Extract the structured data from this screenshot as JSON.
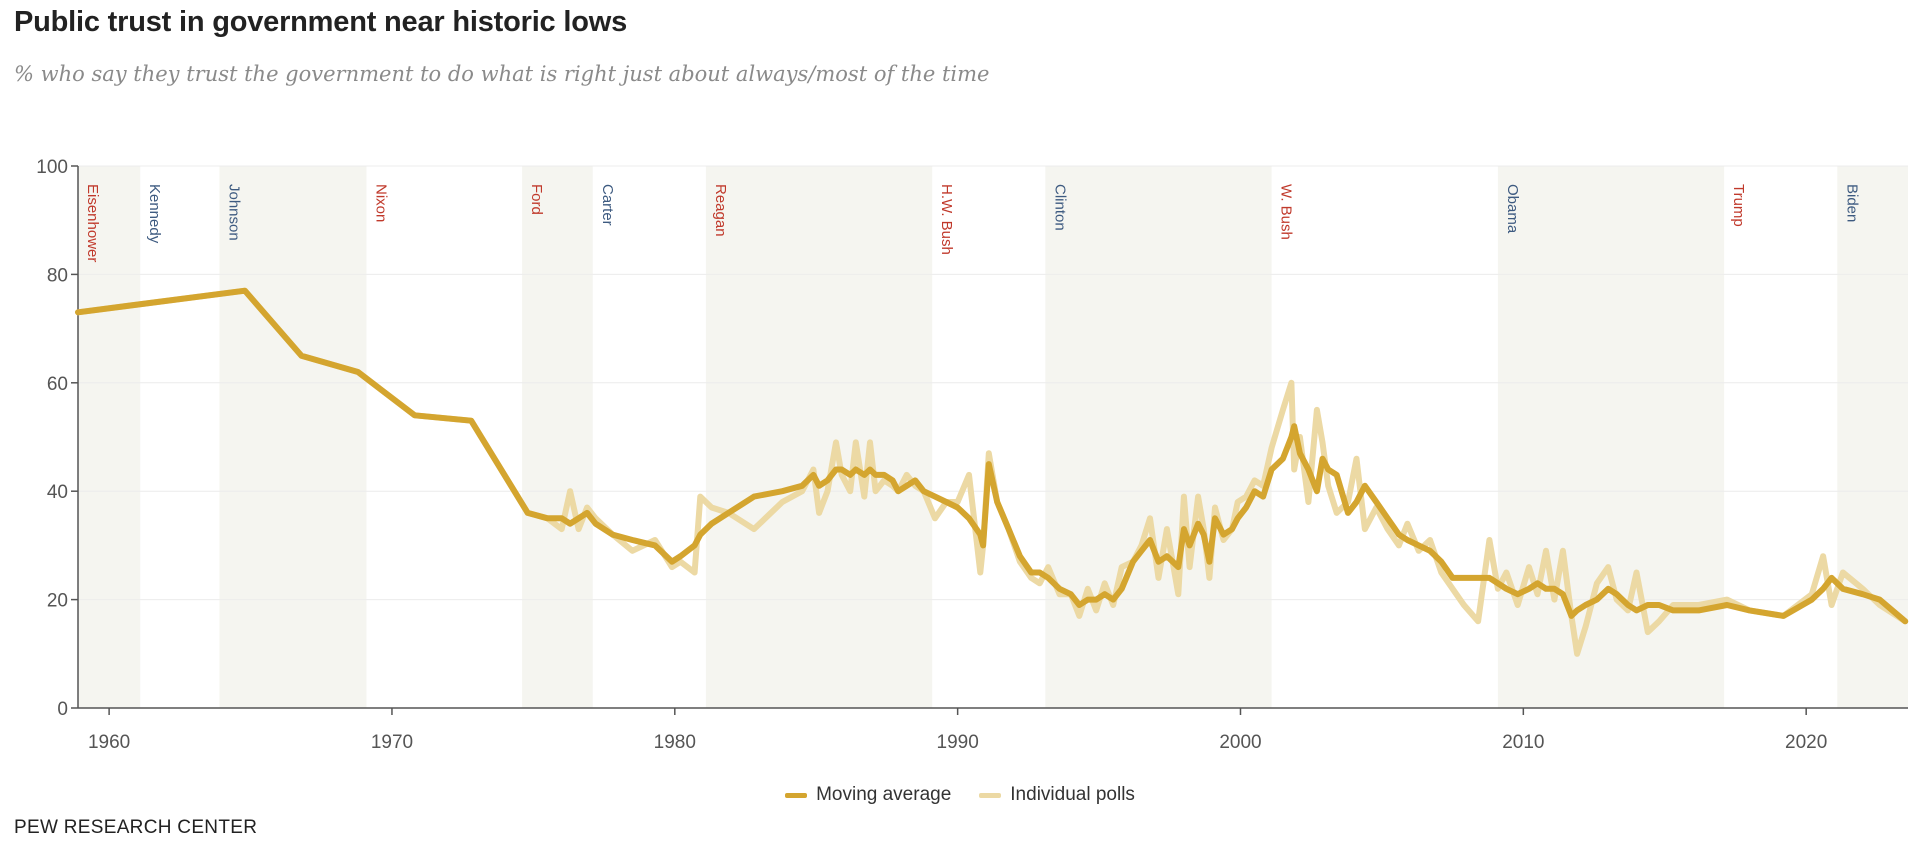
{
  "header": {
    "title": "Public trust in government near historic lows",
    "subtitle": "% who say they trust the government to do what is right just about always/most of the time"
  },
  "footer": {
    "source": "PEW RESEARCH CENTER"
  },
  "colors": {
    "moving_average": "#d4a52f",
    "individual_polls": "#ecd9a4",
    "shade": "#f5f5f0",
    "republican": "#c0392b",
    "democrat": "#3d5a80",
    "axis": "#555555"
  },
  "chart_data": {
    "type": "line",
    "title": "Public trust in government near historic lows",
    "subtitle": "% who say they trust the government to do what is right just about always/most of the time",
    "xlabel": "",
    "ylabel": "",
    "xlim": [
      1958.9,
      2023.6
    ],
    "ylim": [
      0,
      100
    ],
    "x_ticks": [
      1960,
      1970,
      1980,
      1990,
      2000,
      2010,
      2020
    ],
    "y_ticks": [
      0,
      20,
      40,
      60,
      80,
      100
    ],
    "grid": true,
    "legend": "bottom",
    "presidents": [
      {
        "name": "Eisenhower",
        "start": 1958.9,
        "end": 1961.1,
        "party": "R",
        "shaded": true
      },
      {
        "name": "Kennedy",
        "start": 1961.1,
        "end": 1963.9,
        "party": "D",
        "shaded": false
      },
      {
        "name": "Johnson",
        "start": 1963.9,
        "end": 1969.1,
        "party": "D",
        "shaded": true
      },
      {
        "name": "Nixon",
        "start": 1969.1,
        "end": 1974.6,
        "party": "R",
        "shaded": false
      },
      {
        "name": "Ford",
        "start": 1974.6,
        "end": 1977.1,
        "party": "R",
        "shaded": true
      },
      {
        "name": "Carter",
        "start": 1977.1,
        "end": 1981.1,
        "party": "D",
        "shaded": false
      },
      {
        "name": "Reagan",
        "start": 1981.1,
        "end": 1989.1,
        "party": "R",
        "shaded": true
      },
      {
        "name": "H.W. Bush",
        "start": 1989.1,
        "end": 1993.1,
        "party": "R",
        "shaded": false
      },
      {
        "name": "Clinton",
        "start": 1993.1,
        "end": 2001.1,
        "party": "D",
        "shaded": true
      },
      {
        "name": "W. Bush",
        "start": 2001.1,
        "end": 2009.1,
        "party": "R",
        "shaded": false
      },
      {
        "name": "Obama",
        "start": 2009.1,
        "end": 2017.1,
        "party": "D",
        "shaded": true
      },
      {
        "name": "Trump",
        "start": 2017.1,
        "end": 2021.1,
        "party": "R",
        "shaded": false
      },
      {
        "name": "Biden",
        "start": 2021.1,
        "end": 2023.6,
        "party": "D",
        "shaded": true
      }
    ],
    "series": [
      {
        "name": "Individual polls",
        "x": [
          1958.9,
          1964.8,
          1966.8,
          1968.8,
          1970.8,
          1972.8,
          1974.8,
          1975.5,
          1976.0,
          1976.3,
          1976.6,
          1976.9,
          1977.2,
          1977.8,
          1978.5,
          1979.3,
          1979.9,
          1980.2,
          1980.7,
          1980.9,
          1981.3,
          1981.9,
          1982.8,
          1983.8,
          1984.5,
          1984.9,
          1985.1,
          1985.4,
          1985.7,
          1985.9,
          1986.2,
          1986.4,
          1986.7,
          1986.9,
          1987.1,
          1987.4,
          1987.7,
          1987.9,
          1988.2,
          1988.5,
          1988.8,
          1989.2,
          1989.6,
          1990.0,
          1990.4,
          1990.8,
          1990.9,
          1991.1,
          1991.4,
          1991.8,
          1992.2,
          1992.6,
          1992.9,
          1993.2,
          1993.6,
          1994.0,
          1994.3,
          1994.6,
          1994.9,
          1995.2,
          1995.5,
          1995.8,
          1996.2,
          1996.5,
          1996.8,
          1997.1,
          1997.4,
          1997.8,
          1998.0,
          1998.2,
          1998.5,
          1998.7,
          1998.9,
          1999.1,
          1999.4,
          1999.7,
          1999.9,
          2000.2,
          2000.5,
          2000.8,
          2001.1,
          2001.5,
          2001.8,
          2001.9,
          2002.1,
          2002.4,
          2002.7,
          2002.9,
          2003.1,
          2003.4,
          2003.8,
          2004.1,
          2004.4,
          2004.8,
          2005.2,
          2005.6,
          2005.9,
          2006.3,
          2006.7,
          2007.1,
          2007.5,
          2007.9,
          2008.4,
          2008.8,
          2009.1,
          2009.4,
          2009.8,
          2010.2,
          2010.5,
          2010.8,
          2011.1,
          2011.4,
          2011.7,
          2011.9,
          2012.2,
          2012.6,
          2013.0,
          2013.3,
          2013.7,
          2014.0,
          2014.4,
          2014.8,
          2015.3,
          2016.2,
          2017.2,
          2018.0,
          2019.2,
          2020.2,
          2020.6,
          2020.9,
          2021.3,
          2022.0,
          2022.6,
          2023.5
        ],
        "values": [
          73,
          77,
          65,
          62,
          54,
          53,
          36,
          35,
          33,
          40,
          33,
          37,
          35,
          32,
          29,
          31,
          26,
          27,
          25,
          39,
          37,
          36,
          33,
          38,
          40,
          44,
          36,
          40,
          49,
          43,
          40,
          49,
          39,
          49,
          40,
          42,
          41,
          40,
          43,
          41,
          40,
          35,
          38,
          38,
          43,
          25,
          30,
          47,
          38,
          33,
          27,
          24,
          23,
          26,
          21,
          21,
          17,
          22,
          18,
          23,
          19,
          26,
          27,
          30,
          35,
          24,
          33,
          21,
          39,
          26,
          39,
          33,
          24,
          37,
          31,
          33,
          38,
          39,
          42,
          41,
          48,
          55,
          60,
          44,
          50,
          38,
          55,
          49,
          41,
          36,
          38,
          46,
          33,
          37,
          33,
          30,
          34,
          29,
          31,
          25,
          22,
          19,
          16,
          31,
          22,
          25,
          19,
          26,
          21,
          29,
          20,
          29,
          17,
          10,
          15,
          23,
          26,
          20,
          18,
          25,
          14,
          16,
          19,
          19,
          20,
          18,
          17,
          21,
          28,
          19,
          25,
          22,
          19,
          16
        ]
      },
      {
        "name": "Moving average",
        "x": [
          1958.9,
          1964.8,
          1966.8,
          1968.8,
          1970.8,
          1972.8,
          1974.8,
          1975.5,
          1976.0,
          1976.3,
          1976.6,
          1976.9,
          1977.2,
          1977.8,
          1978.5,
          1979.3,
          1979.9,
          1980.2,
          1980.7,
          1980.9,
          1981.3,
          1981.9,
          1982.8,
          1983.8,
          1984.5,
          1984.9,
          1985.1,
          1985.4,
          1985.7,
          1985.9,
          1986.2,
          1986.4,
          1986.7,
          1986.9,
          1987.1,
          1987.4,
          1987.7,
          1987.9,
          1988.2,
          1988.5,
          1988.8,
          1989.2,
          1989.6,
          1990.0,
          1990.4,
          1990.8,
          1990.9,
          1991.1,
          1991.4,
          1991.8,
          1992.2,
          1992.6,
          1992.9,
          1993.2,
          1993.6,
          1994.0,
          1994.3,
          1994.6,
          1994.9,
          1995.2,
          1995.5,
          1995.8,
          1996.2,
          1996.5,
          1996.8,
          1997.1,
          1997.4,
          1997.8,
          1998.0,
          1998.2,
          1998.5,
          1998.7,
          1998.9,
          1999.1,
          1999.4,
          1999.7,
          1999.9,
          2000.2,
          2000.5,
          2000.8,
          2001.1,
          2001.5,
          2001.8,
          2001.9,
          2002.1,
          2002.4,
          2002.7,
          2002.9,
          2003.1,
          2003.4,
          2003.8,
          2004.1,
          2004.4,
          2004.8,
          2005.2,
          2005.6,
          2005.9,
          2006.3,
          2006.7,
          2007.1,
          2007.5,
          2007.9,
          2008.4,
          2008.8,
          2009.1,
          2009.4,
          2009.8,
          2010.2,
          2010.5,
          2010.8,
          2011.1,
          2011.4,
          2011.7,
          2011.9,
          2012.2,
          2012.6,
          2013.0,
          2013.3,
          2013.7,
          2014.0,
          2014.4,
          2014.8,
          2015.3,
          2016.2,
          2017.2,
          2018.0,
          2019.2,
          2020.2,
          2020.6,
          2020.9,
          2021.3,
          2022.0,
          2022.6,
          2023.5
        ],
        "values": [
          73,
          77,
          65,
          62,
          54,
          53,
          36,
          35,
          35,
          34,
          35,
          36,
          34,
          32,
          31,
          30,
          27,
          28,
          30,
          32,
          34,
          36,
          39,
          40,
          41,
          43,
          41,
          42,
          44,
          44,
          43,
          44,
          43,
          44,
          43,
          43,
          42,
          40,
          41,
          42,
          40,
          39,
          38,
          37,
          35,
          32,
          30,
          45,
          38,
          33,
          28,
          25,
          25,
          24,
          22,
          21,
          19,
          20,
          20,
          21,
          20,
          22,
          27,
          29,
          31,
          27,
          28,
          26,
          33,
          30,
          34,
          32,
          27,
          35,
          32,
          33,
          35,
          37,
          40,
          39,
          44,
          46,
          50,
          52,
          47,
          44,
          40,
          46,
          44,
          43,
          36,
          38,
          41,
          38,
          35,
          32,
          31,
          30,
          29,
          27,
          24,
          24,
          24,
          24,
          23,
          22,
          21,
          22,
          23,
          22,
          22,
          21,
          17,
          18,
          19,
          20,
          22,
          21,
          19,
          18,
          19,
          19,
          18,
          18,
          19,
          18,
          17,
          20,
          22,
          24,
          22,
          21,
          20,
          16
        ]
      }
    ]
  }
}
